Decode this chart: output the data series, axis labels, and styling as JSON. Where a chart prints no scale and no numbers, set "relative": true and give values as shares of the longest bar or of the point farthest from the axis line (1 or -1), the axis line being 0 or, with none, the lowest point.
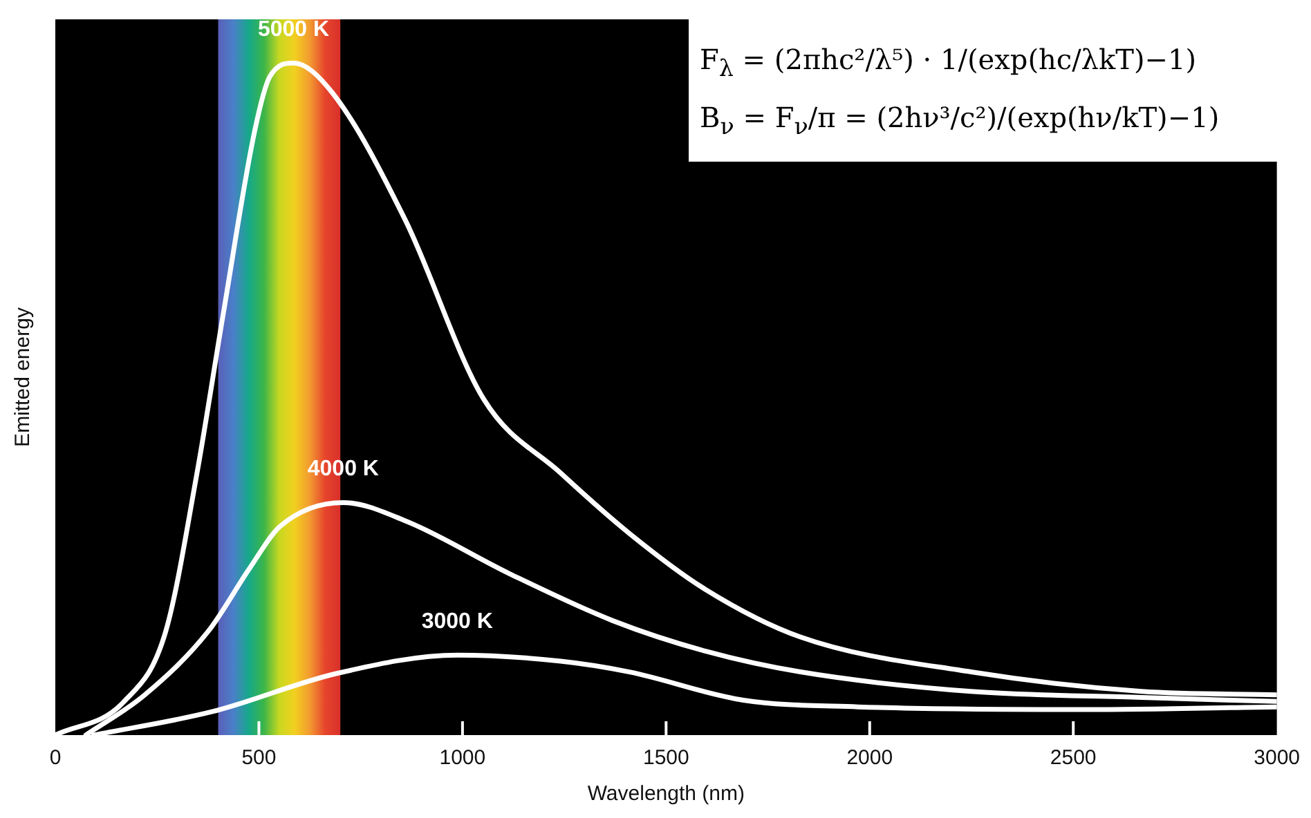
{
  "chart_data": {
    "type": "line",
    "relative": true,
    "xlabel": "Wavelength (nm)",
    "ylabel": "Emitted energy",
    "xlim": [
      0,
      3000
    ],
    "xticks": [
      0,
      500,
      1000,
      1500,
      2000,
      2500,
      3000
    ],
    "tick_labels": "x",
    "grid": false,
    "legend": false,
    "marker": "none",
    "line_style": "solid",
    "bands": [
      {
        "axis": "x",
        "from": 400,
        "to": 700
      }
    ],
    "annotations": [
      "F$_{λ}$ = (2πhc²/λ⁵) · 1/(exp(hc/λkT)−1)",
      "B$_{ν}$ = F$_{ν}$/π = (2hν³/c²)/(exp(hν/kT)−1)"
    ],
    "series": [
      {
        "name": "5000 K",
        "color": "#ffffff",
        "x": [
          0,
          169,
          271,
          348,
          412,
          490,
          527,
          585,
          680,
          859,
          1052,
          1241,
          1410,
          1596,
          1830,
          2249,
          2668,
          3000
        ],
        "values": [
          0,
          0.05,
          0.154,
          0.39,
          0.625,
          0.9,
          0.98,
          1,
          0.956,
          0.767,
          0.5,
          0.39,
          0.3,
          0.217,
          0.146,
          0.094,
          0.065,
          0.06
        ]
      },
      {
        "name": "4000 K",
        "color": "#ffffff",
        "x": [
          75,
          220,
          375,
          477,
          551,
          707,
          859,
          1116,
          1370,
          1596,
          1830,
          2249,
          2668,
          3000
        ],
        "values": [
          0,
          0.06,
          0.154,
          0.248,
          0.31,
          0.346,
          0.319,
          0.24,
          0.17,
          0.125,
          0.094,
          0.065,
          0.056,
          0.05
        ]
      },
      {
        "name": "3000 K",
        "color": "#ffffff",
        "x": [
          94,
          386,
          693,
          987,
          1241,
          1410,
          1690,
          1971,
          2530,
          3000
        ],
        "values": [
          0,
          0.035,
          0.092,
          0.119,
          0.11,
          0.094,
          0.052,
          0.042,
          0.038,
          0.042
        ]
      }
    ]
  }
}
